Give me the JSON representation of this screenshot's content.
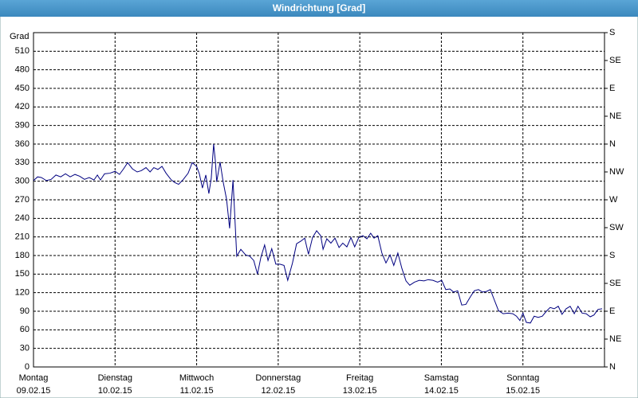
{
  "chart_data": {
    "type": "line",
    "title": "Windrichtung [Grad]",
    "ylabel": "Grad",
    "color": "#000080",
    "grid": true,
    "xlim": [
      0,
      168
    ],
    "xticks": [
      {
        "value": 0,
        "label": "Montag"
      },
      {
        "value": 24,
        "label": "Dienstag"
      },
      {
        "value": 48,
        "label": "Mittwoch"
      },
      {
        "value": 72,
        "label": "Donnerstag"
      },
      {
        "value": 96,
        "label": "Freitag"
      },
      {
        "value": 120,
        "label": "Samstag"
      },
      {
        "value": 144,
        "label": "Sonntag"
      }
    ],
    "xtick_dates": [
      "09.02.15",
      "10.02.15",
      "11.02.15",
      "12.02.15",
      "13.02.15",
      "14.02.15",
      "15.02.15"
    ],
    "ylim": [
      0,
      540
    ],
    "yticks": [
      0,
      30,
      60,
      90,
      120,
      150,
      180,
      210,
      240,
      270,
      300,
      330,
      360,
      390,
      420,
      450,
      480,
      510
    ],
    "y2lim": [
      0,
      540
    ],
    "y2ticks": [
      {
        "value": 0,
        "label": "N"
      },
      {
        "value": 45,
        "label": "NE"
      },
      {
        "value": 90,
        "label": "E"
      },
      {
        "value": 135,
        "label": "SE"
      },
      {
        "value": 180,
        "label": "S"
      },
      {
        "value": 225,
        "label": "SW"
      },
      {
        "value": 270,
        "label": "W"
      },
      {
        "value": 315,
        "label": "NW"
      },
      {
        "value": 360,
        "label": "N"
      },
      {
        "value": 405,
        "label": "NE"
      },
      {
        "value": 450,
        "label": "E"
      },
      {
        "value": 495,
        "label": "SE"
      },
      {
        "value": 540,
        "label": "S"
      }
    ],
    "x": [
      0,
      1.2,
      2.3,
      3.8,
      5.2,
      6.6,
      8.0,
      9.4,
      10.8,
      12.2,
      13.6,
      15.0,
      16.4,
      17.8,
      18.8,
      19.7,
      20.9,
      22.5,
      24.0,
      25.3,
      26.5,
      27.7,
      29.1,
      30.5,
      31.7,
      33.1,
      34.3,
      35.4,
      36.6,
      37.8,
      39.0,
      40.4,
      41.5,
      42.7,
      44.1,
      45.5,
      46.7,
      48.0,
      48.8,
      49.7,
      50.7,
      51.6,
      52.3,
      53.0,
      53.5,
      53.9,
      54.9,
      55.8,
      56.8,
      57.7,
      58.7,
      59.8,
      61.0,
      62.4,
      63.6,
      64.8,
      65.9,
      66.9,
      68.0,
      69.0,
      70.1,
      71.3,
      72.5,
      73.7,
      74.8,
      76.2,
      77.4,
      78.6,
      79.8,
      80.9,
      82.1,
      83.3,
      84.5,
      85.2,
      86.3,
      87.5,
      88.7,
      89.9,
      91.0,
      92.2,
      93.4,
      94.5,
      95.7,
      96.9,
      98.1,
      99.2,
      100.2,
      101.3,
      102.5,
      103.7,
      104.9,
      106.0,
      107.2,
      108.4,
      109.6,
      110.7,
      112.1,
      113.5,
      114.9,
      116.1,
      117.5,
      118.9,
      120.1,
      121.3,
      122.5,
      123.6,
      124.8,
      126.0,
      127.2,
      128.6,
      129.7,
      130.9,
      132.1,
      133.3,
      134.4,
      135.6,
      136.8,
      138.2,
      139.6,
      141.0,
      142.1,
      143.1,
      144.0,
      145.0,
      146.2,
      147.3,
      148.5,
      149.7,
      150.9,
      152.0,
      153.2,
      154.4,
      155.5,
      156.7,
      157.9,
      159.1,
      160.2,
      161.4,
      162.6,
      163.8,
      164.9,
      166.1,
      167.3
    ],
    "values": [
      301,
      307,
      306,
      301,
      303,
      310,
      307,
      312,
      307,
      311,
      308,
      303,
      306,
      302,
      310,
      302,
      312,
      313,
      316,
      311,
      320,
      330,
      320,
      315,
      317,
      322,
      315,
      322,
      319,
      324,
      313,
      303,
      298,
      295,
      303,
      313,
      330,
      324,
      312,
      289,
      310,
      280,
      305,
      360,
      333,
      299,
      331,
      299,
      271,
      224,
      302,
      179,
      190,
      181,
      179,
      172,
      150,
      177,
      197,
      172,
      191,
      166,
      166,
      164,
      140,
      168,
      199,
      203,
      208,
      182,
      209,
      220,
      212,
      190,
      207,
      200,
      208,
      193,
      200,
      194,
      209,
      194,
      209,
      212,
      207,
      216,
      208,
      212,
      184,
      168,
      181,
      164,
      184,
      159,
      139,
      132,
      137,
      140,
      139,
      141,
      140,
      137,
      140,
      125,
      126,
      121,
      123,
      100,
      101,
      114,
      123,
      125,
      121,
      122,
      125,
      108,
      91,
      86,
      87,
      86,
      82,
      75,
      87,
      72,
      71,
      82,
      80,
      82,
      90,
      96,
      94,
      98,
      85,
      94,
      98,
      86,
      98,
      87,
      86,
      81,
      84,
      93,
      94
    ]
  }
}
